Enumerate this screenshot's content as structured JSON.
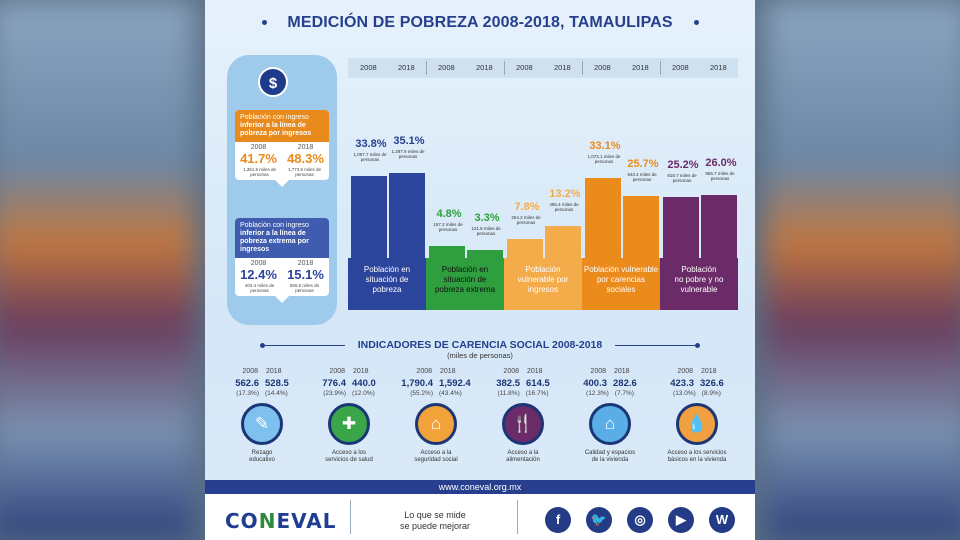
{
  "title": "MEDICIÓN DE POBREZA 2008-2018, TAMAULIPAS",
  "colors": {
    "navy": "#26408e",
    "blue": "#2b449c",
    "green": "#2f9e3e",
    "lightorange": "#f4ab4a",
    "orange": "#ea8b1c",
    "purple": "#6b2b68"
  },
  "callouts": [
    {
      "label_plain": "Población con ingreso",
      "label_bold": "inferior a la línea de pobreza por ingresos",
      "y1": "2008",
      "y2": "2018",
      "p1": "41.7%",
      "p2": "48.3%",
      "m1": "1,351.9 miles de personas",
      "m2": "1,773.5 miles de personas"
    },
    {
      "label_plain": "Población con ingreso",
      "label_bold": "inferior a la línea de pobreza extrema por ingresos",
      "y1": "2008",
      "y2": "2018",
      "p1": "12.4%",
      "p2": "15.1%",
      "m1": "403.4 miles de personas",
      "m2": "555.5 miles de personas"
    }
  ],
  "chart_data": {
    "type": "bar",
    "categories": [
      "Población en situación de pobreza",
      "Población en situación de pobreza extrema",
      "Población vulnerable por ingresos",
      "Población vulnerable por carencias sociales",
      "Población no pobre y no vulnerable"
    ],
    "x": [
      "2008",
      "2018"
    ],
    "series": [
      {
        "name": "2008",
        "values": [
          33.8,
          4.8,
          7.8,
          33.1,
          25.2
        ],
        "miles": [
          "1,097.7 miles de personas",
          "157.2 miles de personas",
          "254.2 miles de personas",
          "1,073.1 miles de personas",
          "818.7 miles de personas"
        ]
      },
      {
        "name": "2018",
        "values": [
          35.1,
          3.3,
          13.2,
          25.7,
          26.0
        ],
        "miles": [
          "1,287.9 miles de personas",
          "121.8 miles de personas",
          "486.4 miles de personas",
          "943.4 miles de personas",
          "955.7 miles de personas"
        ]
      }
    ],
    "groups": [
      {
        "l1": "Población en",
        "l2": "situación de",
        "l3": "pobreza"
      },
      {
        "l1": "Población en",
        "l2": "situación de",
        "l3": "pobreza extrema"
      },
      {
        "l1": "Población",
        "l2": "vulnerable por",
        "l3": "ingresos"
      },
      {
        "l1": "Población vulnerable",
        "l2": "por carencias",
        "l3": "sociales"
      },
      {
        "l1": "Población",
        "l2": "no pobre y no",
        "l3": "vulnerable"
      }
    ],
    "ylim": [
      0,
      40
    ]
  },
  "section": {
    "title": "INDICADORES DE CARENCIA SOCIAL 2008-2018",
    "subtitle": "(miles de personas)"
  },
  "indicators": [
    {
      "y1": "2008",
      "y2": "2018",
      "v1": "562.6",
      "v2": "528.5",
      "p1": "(17.3%)",
      "p2": "(14.4%)",
      "icon": "education-icon",
      "l1": "Rezago",
      "l2": "educativo"
    },
    {
      "y1": "2008",
      "y2": "2018",
      "v1": "776.4",
      "v2": "440.0",
      "p1": "(23.9%)",
      "p2": "(12.0%)",
      "icon": "health-icon",
      "l1": "Acceso a los",
      "l2": "servicios de salud"
    },
    {
      "y1": "2008",
      "y2": "2018",
      "v1": "1,790.4",
      "v2": "1,592.4",
      "p1": "(55.2%)",
      "p2": "(43.4%)",
      "icon": "social-security-icon",
      "l1": "Acceso a la",
      "l2": "seguridad social"
    },
    {
      "y1": "2008",
      "y2": "2018",
      "v1": "382.5",
      "v2": "614.5",
      "p1": "(11.8%)",
      "p2": "(16.7%)",
      "icon": "food-icon",
      "l1": "Acceso a la",
      "l2": "alimentación"
    },
    {
      "y1": "2008",
      "y2": "2018",
      "v1": "400.3",
      "v2": "282.6",
      "p1": "(12.3%)",
      "p2": "(7.7%)",
      "icon": "housing-icon",
      "l1": "Calidad y espacios",
      "l2": "de la vivienda"
    },
    {
      "y1": "2008",
      "y2": "2018",
      "v1": "423.3",
      "v2": "326.6",
      "p1": "(13.0%)",
      "p2": "(8.9%)",
      "icon": "water-icon",
      "l1": "Acceso a los servicios",
      "l2": "básicos en la vivienda"
    }
  ],
  "footer": {
    "url": "www.coneval.org.mx",
    "logo": "CONEVAL",
    "slogan1": "Lo que se mide",
    "slogan2": "se puede mejorar",
    "social": [
      {
        "icon": "facebook-icon",
        "glyph": "f"
      },
      {
        "icon": "twitter-icon",
        "glyph": "🐦"
      },
      {
        "icon": "instagram-icon",
        "glyph": "◎"
      },
      {
        "icon": "youtube-icon",
        "glyph": "▶"
      },
      {
        "icon": "wordpress-icon",
        "glyph": "W"
      }
    ]
  }
}
